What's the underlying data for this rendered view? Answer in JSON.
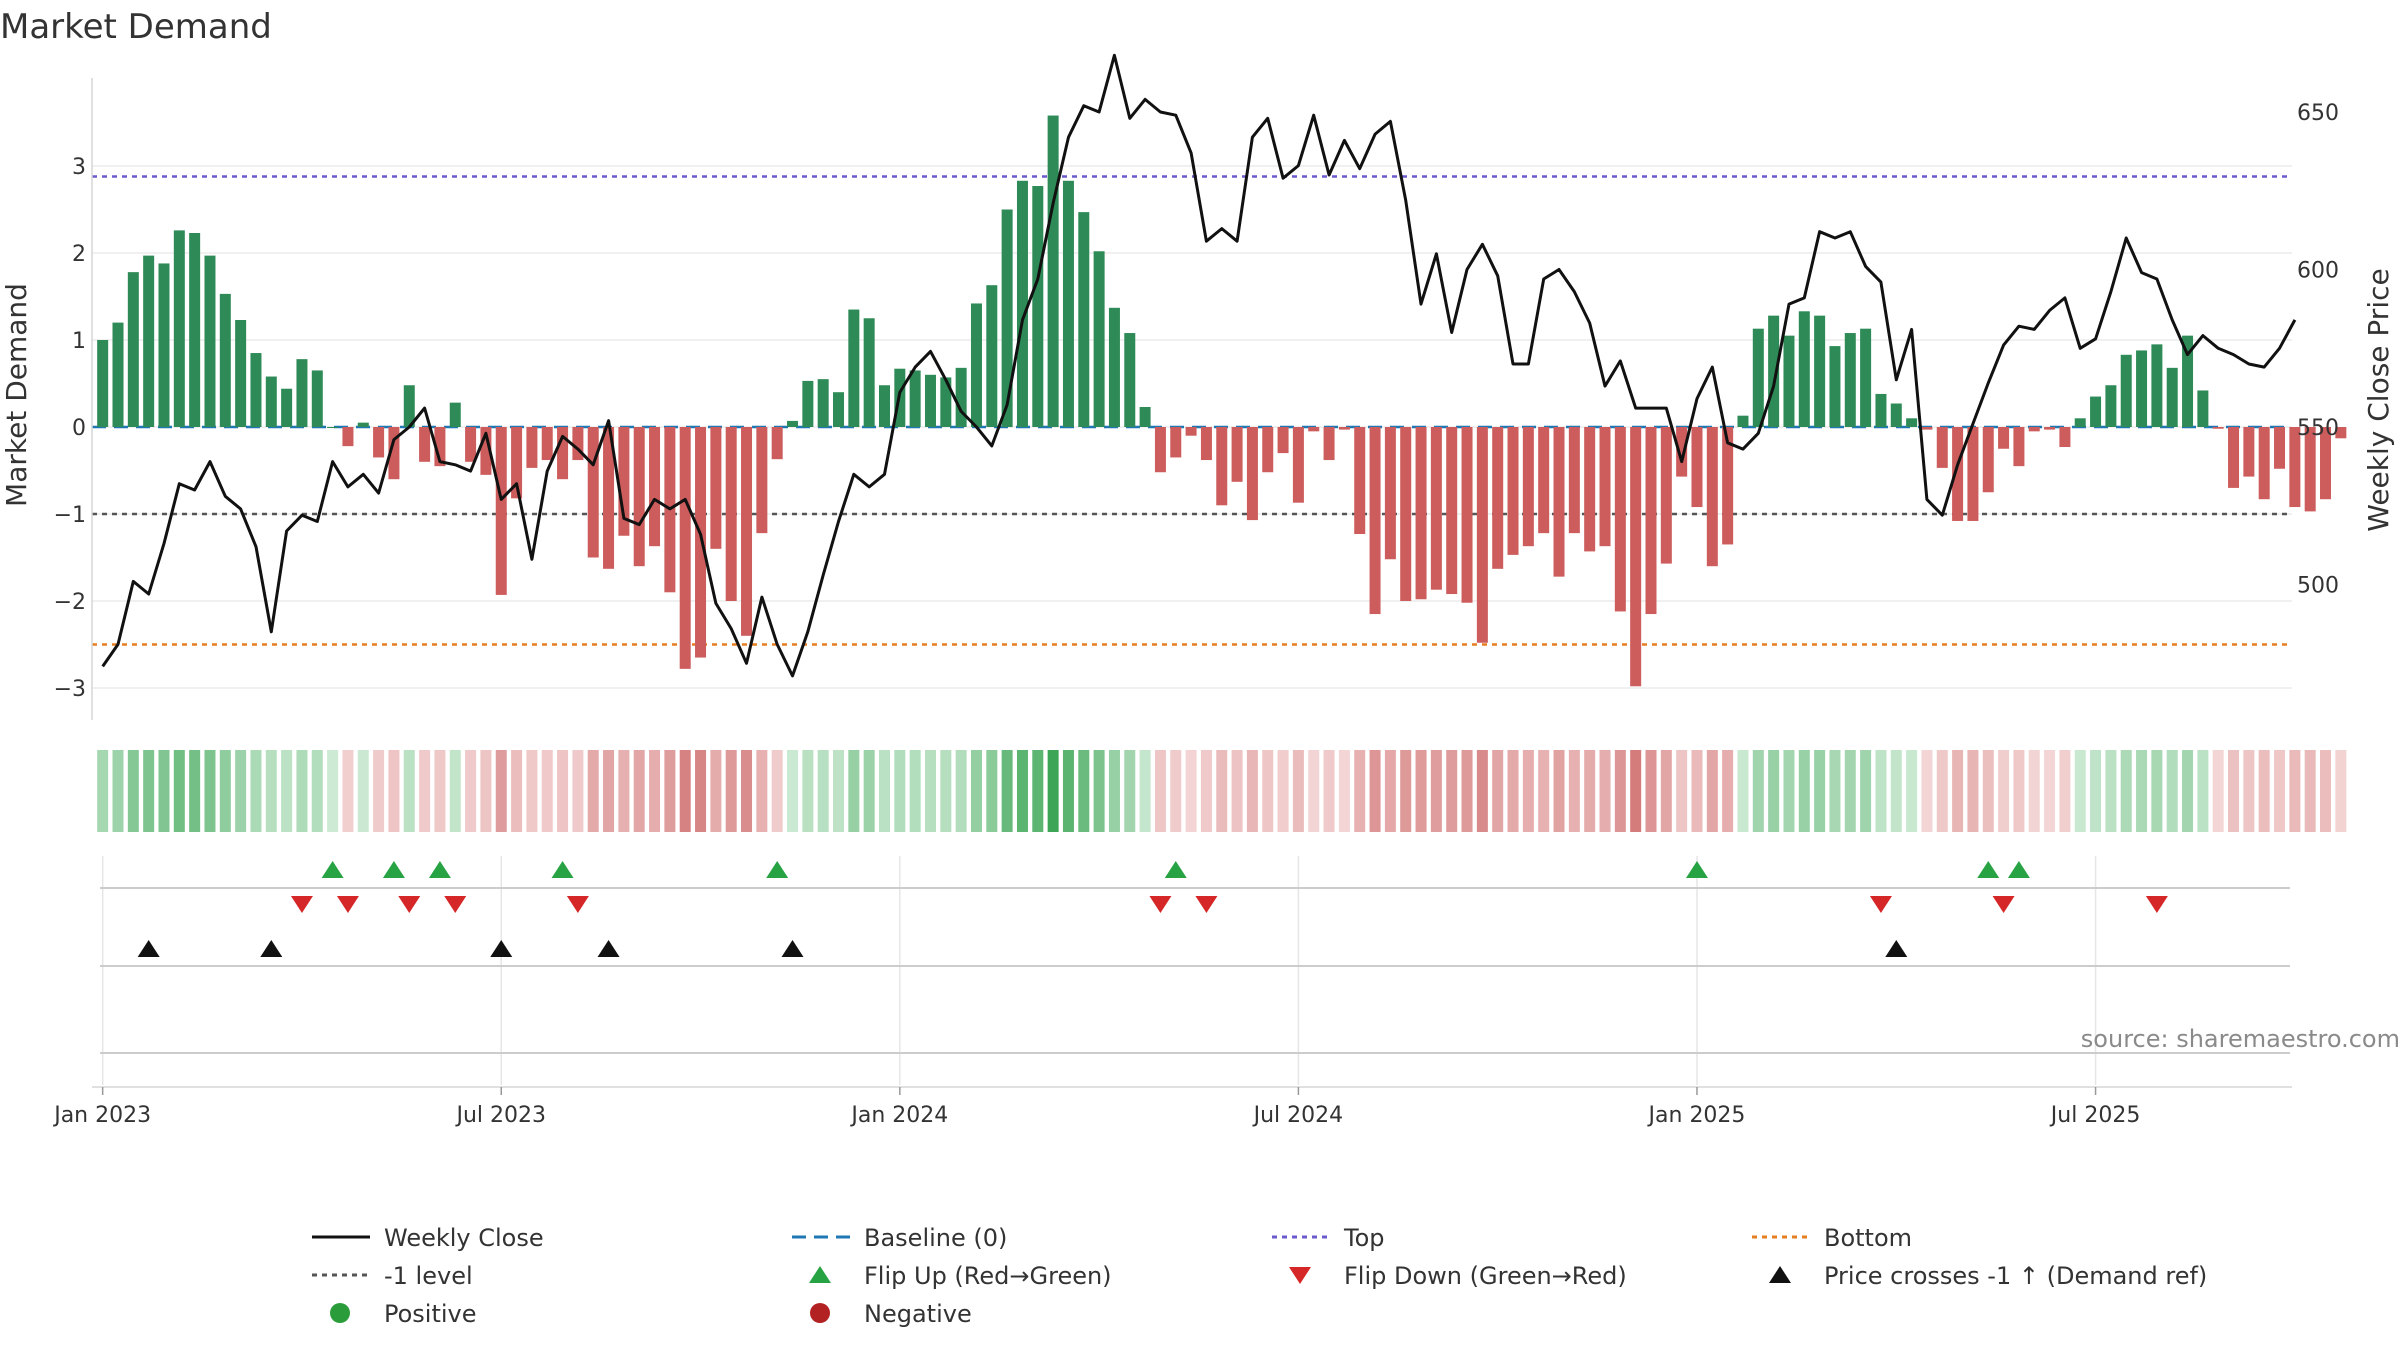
{
  "chart_data": {
    "type": "bar",
    "title": "Market Demand",
    "ylabel": "Market Demand",
    "y2label": "Weekly Close Price",
    "ylim": [
      -3.3,
      3.8
    ],
    "y2lim": [
      465,
      665
    ],
    "yticks": [
      3,
      2,
      1,
      0,
      -1,
      -2,
      -3
    ],
    "yticklabels": [
      "3",
      "2",
      "1",
      "0",
      "−1",
      "−2",
      "−3"
    ],
    "y2ticks": [
      650,
      600,
      550,
      500
    ],
    "y2ticklabels": [
      "650",
      "600",
      "550",
      "500"
    ],
    "xticks": [
      {
        "week": 1,
        "label": "Jan 2023"
      },
      {
        "week": 27,
        "label": "Jul 2023"
      },
      {
        "week": 53,
        "label": "Jan 2024"
      },
      {
        "week": 79,
        "label": "Jul 2024"
      },
      {
        "week": 105,
        "label": "Jan 2025"
      },
      {
        "week": 131,
        "label": "Jul 2025"
      }
    ],
    "reference_lines": {
      "baseline": 0,
      "minus_one": -1,
      "top": 2.88,
      "bottom": -2.5
    },
    "demand": [
      1.0,
      1.2,
      1.78,
      1.97,
      1.88,
      2.26,
      2.23,
      1.97,
      1.53,
      1.23,
      0.85,
      0.58,
      0.44,
      0.78,
      0.65,
      0.0,
      -0.22,
      0.05,
      -0.35,
      -0.6,
      0.48,
      -0.4,
      -0.45,
      0.28,
      -0.4,
      -0.55,
      -1.93,
      -0.82,
      -0.47,
      -0.38,
      -0.6,
      -0.38,
      -1.5,
      -1.63,
      -1.25,
      -1.6,
      -1.37,
      -1.9,
      -2.78,
      -2.65,
      -1.4,
      -2.0,
      -2.4,
      -1.22,
      -0.37,
      0.07,
      0.53,
      0.55,
      0.4,
      1.35,
      1.25,
      0.48,
      0.67,
      0.65,
      0.6,
      0.57,
      0.68,
      1.42,
      1.63,
      2.5,
      2.83,
      2.77,
      3.58,
      2.83,
      2.47,
      2.02,
      1.37,
      1.08,
      0.23,
      -0.52,
      -0.35,
      -0.1,
      -0.38,
      -0.9,
      -0.63,
      -1.07,
      -0.52,
      -0.3,
      -0.87,
      -0.05,
      -0.38,
      -0.03,
      -1.23,
      -2.15,
      -1.52,
      -2.0,
      -1.98,
      -1.87,
      -1.92,
      -2.02,
      -2.48,
      -1.63,
      -1.47,
      -1.37,
      -1.22,
      -1.72,
      -1.22,
      -1.43,
      -1.37,
      -2.12,
      -2.98,
      -2.15,
      -1.57,
      -0.57,
      -0.92,
      -1.6,
      -1.35,
      0.13,
      1.13,
      1.28,
      1.05,
      1.33,
      1.28,
      0.93,
      1.08,
      1.13,
      0.38,
      0.27,
      0.1,
      -0.03,
      -0.47,
      -1.08,
      -1.08,
      -0.75,
      -0.25,
      -0.45,
      -0.05,
      -0.03,
      -0.23,
      0.1,
      0.35,
      0.48,
      0.83,
      0.88,
      0.95,
      0.68,
      1.05,
      0.42,
      -0.02,
      -0.7,
      -0.57,
      -0.83,
      -0.48,
      -0.92,
      -0.97,
      -0.83,
      -0.13
    ],
    "weekly_close": [
      474,
      481,
      501,
      497,
      513,
      532,
      530,
      539,
      528,
      524,
      512,
      485,
      517,
      522,
      520,
      539,
      531,
      535,
      529,
      546,
      550,
      556,
      539,
      538,
      536,
      548,
      527,
      532,
      508,
      536,
      547,
      543,
      538,
      552,
      521,
      519,
      527,
      524,
      527,
      516,
      494,
      486,
      475,
      496,
      481,
      471,
      485,
      503,
      520,
      535,
      531,
      535,
      561,
      569,
      574,
      565,
      555,
      550,
      544,
      557,
      584,
      597,
      621,
      642,
      652,
      650,
      668,
      648,
      654,
      650,
      649,
      637,
      609,
      613,
      609,
      642,
      648,
      629,
      633,
      649,
      630,
      641,
      632,
      643,
      647,
      622,
      589,
      605,
      580,
      600,
      608,
      598,
      570,
      570,
      597,
      600,
      593,
      583,
      563,
      571,
      556,
      556,
      556,
      539,
      559,
      569,
      545,
      543,
      548,
      563,
      589,
      591,
      612,
      610,
      612,
      601,
      596,
      565,
      581,
      527,
      522,
      538,
      551,
      564,
      576,
      582,
      581,
      587,
      591,
      575,
      578,
      593,
      610,
      599,
      597,
      584,
      573,
      579,
      575,
      573,
      570,
      569,
      575,
      584
    ],
    "flip_up_weeks": [
      16,
      20,
      23,
      31,
      45,
      71,
      105,
      124,
      126
    ],
    "flip_down_weeks": [
      14,
      17,
      21,
      24,
      32,
      70,
      73,
      117,
      125,
      135
    ],
    "cross_minus1_weeks": [
      4,
      12,
      27,
      34,
      46,
      118
    ],
    "legend": [
      {
        "label": "Weekly Close",
        "key": "line"
      },
      {
        "label": "Baseline (0)",
        "key": "baseline"
      },
      {
        "label": "Top",
        "key": "top"
      },
      {
        "label": "Bottom",
        "key": "bottom"
      },
      {
        "label": "-1 level",
        "key": "minus1"
      },
      {
        "label": "Flip Up (Red→Green)",
        "key": "flipup"
      },
      {
        "label": "Flip Down (Green→Red)",
        "key": "flipdown"
      },
      {
        "label": "Price crosses -1 ↑ (Demand ref)",
        "key": "cross"
      },
      {
        "label": "Positive",
        "key": "positive"
      },
      {
        "label": "Negative",
        "key": "negative"
      }
    ],
    "source": "source: sharemaestro.com"
  },
  "colors": {
    "positive_bar": "#2e8b57",
    "negative_bar": "#cd5c5c",
    "line": "#111111",
    "baseline": "#1f77b4",
    "top": "#6a5acd",
    "bottom": "#e67e22",
    "minus_one": "#555555",
    "flip_up": "#27a344",
    "flip_down": "#d62728",
    "cross": "#111111",
    "positive_dot": "#2a9d3a",
    "negative_dot": "#b22222"
  }
}
